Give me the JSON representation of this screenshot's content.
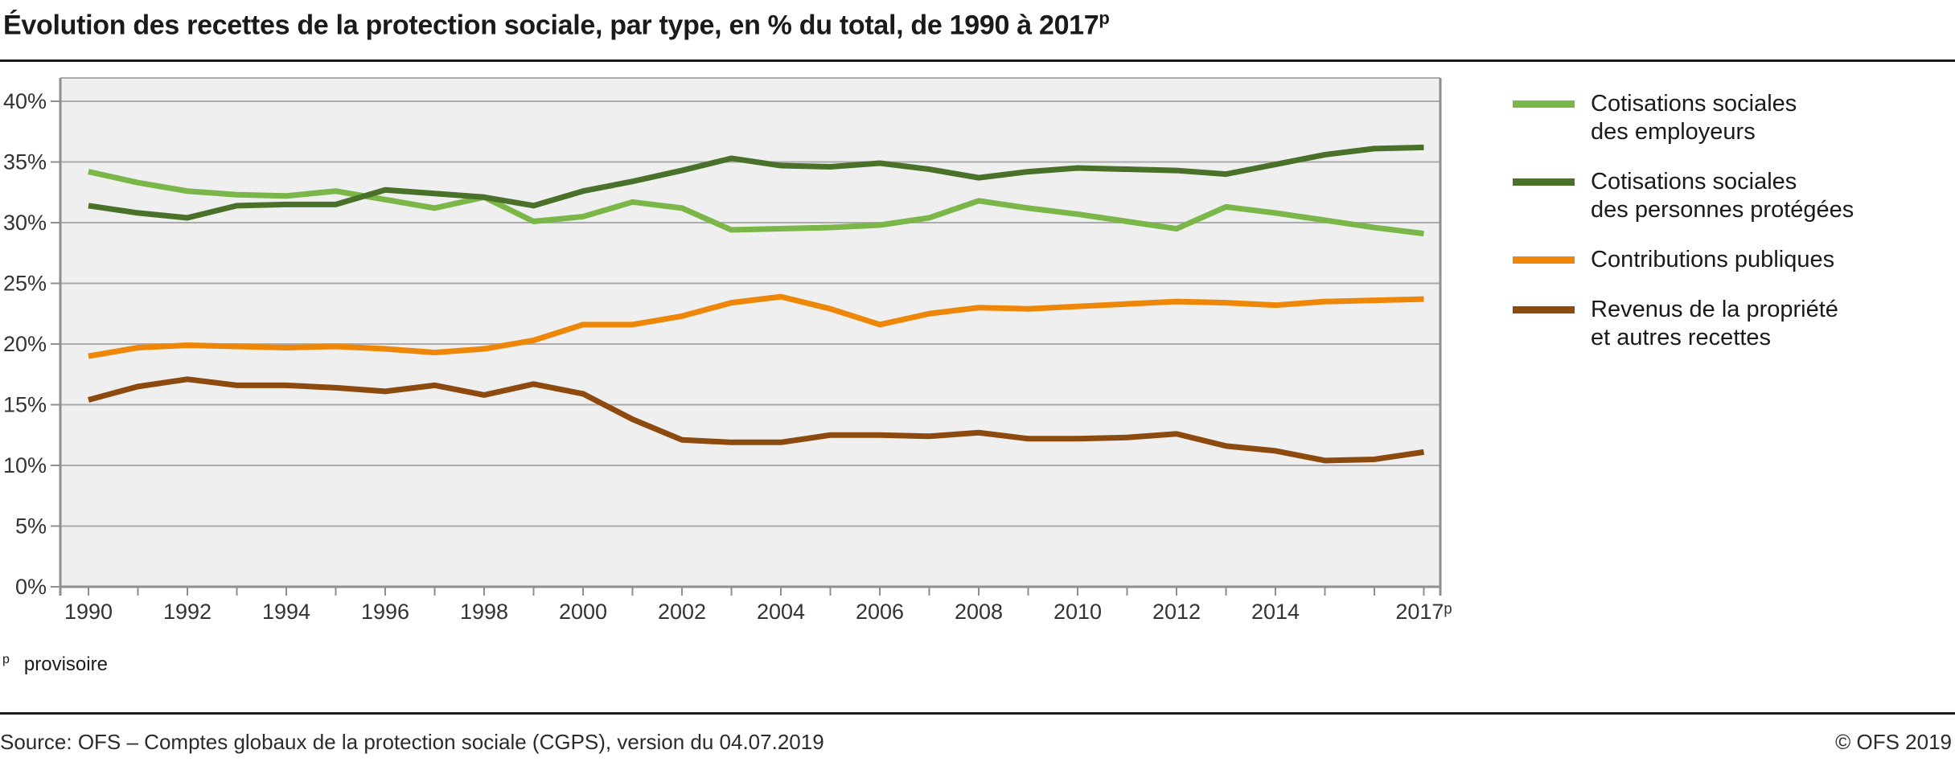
{
  "header": {
    "title": "Évolution des recettes de la protection sociale, par type, en % du total, de 1990 à 2017",
    "title_sup": "p"
  },
  "footnote": {
    "marker": "p",
    "text": "provisoire"
  },
  "footer": {
    "source": "Source: OFS – Comptes globaux de la protection sociale (CGPS), version du 04.07.2019",
    "copyright": "© OFS 2019"
  },
  "colors": {
    "plot_background": "#EFEFEF",
    "gridline": "#ABABAB",
    "axis": "#8F8F8F",
    "tick_label": "#333333",
    "rule": "#1A1A1A",
    "series_employeurs": "#7AB648",
    "series_personnes_protegees": "#4A7129",
    "series_contributions_publiques": "#EE8608",
    "series_revenus_propriete": "#8C4A0F"
  },
  "chart_data": {
    "type": "line",
    "title": "Évolution des recettes de la protection sociale, par type, en % du total, de 1990 à 2017p",
    "xlabel": "",
    "ylabel": "",
    "ylim": [
      0,
      40
    ],
    "grid": true,
    "legend_position": "right",
    "x": [
      1990,
      1991,
      1992,
      1993,
      1994,
      1995,
      1996,
      1997,
      1998,
      1999,
      2000,
      2001,
      2002,
      2003,
      2004,
      2005,
      2006,
      2007,
      2008,
      2009,
      2010,
      2011,
      2012,
      2013,
      2014,
      2015,
      2016,
      2017
    ],
    "x_axis": {
      "tick_label_years": [
        1990,
        1992,
        1994,
        1996,
        1998,
        2000,
        2002,
        2004,
        2006,
        2008,
        2010,
        2012,
        2014,
        2017
      ],
      "tick_labels": [
        "1990",
        "1992",
        "1994",
        "1996",
        "1998",
        "2000",
        "2002",
        "2004",
        "2006",
        "2008",
        "2010",
        "2012",
        "2014",
        "2017ᵖ"
      ]
    },
    "y_axis": {
      "min": 0,
      "max": 40,
      "step": 5,
      "tick_labels": [
        "0%",
        "5%",
        "10%",
        "15%",
        "20%",
        "25%",
        "30%",
        "35%",
        "40%"
      ]
    },
    "series": [
      {
        "key": "cotisations-employeurs",
        "name": "Cotisations sociales\ndes employeurs",
        "color": "#7AB648",
        "values": [
          34.2,
          33.3,
          32.6,
          32.3,
          32.2,
          32.6,
          31.9,
          31.2,
          32.1,
          30.1,
          30.5,
          31.7,
          31.2,
          29.4,
          29.5,
          29.6,
          29.8,
          30.4,
          31.8,
          31.2,
          30.7,
          30.1,
          29.5,
          31.3,
          30.8,
          30.2,
          29.6,
          29.1
        ]
      },
      {
        "key": "cotisations-personnes-protegees",
        "name": "Cotisations sociales\ndes personnes protégées",
        "color": "#4A7129",
        "values": [
          31.4,
          30.8,
          30.4,
          31.4,
          31.5,
          31.5,
          32.7,
          32.4,
          32.1,
          31.4,
          32.6,
          33.4,
          34.3,
          35.3,
          34.7,
          34.6,
          34.9,
          34.4,
          33.7,
          34.2,
          34.5,
          34.4,
          34.3,
          34.0,
          34.8,
          35.6,
          36.1,
          36.2
        ]
      },
      {
        "key": "contributions-publiques",
        "name": "Contributions publiques",
        "color": "#EE8608",
        "values": [
          19.0,
          19.7,
          19.9,
          19.8,
          19.7,
          19.8,
          19.6,
          19.3,
          19.6,
          20.3,
          21.6,
          21.6,
          22.3,
          23.4,
          23.9,
          22.9,
          21.6,
          22.5,
          23.0,
          22.9,
          23.1,
          23.3,
          23.5,
          23.4,
          23.2,
          23.5,
          23.6,
          23.7
        ]
      },
      {
        "key": "revenus-propriete",
        "name": "Revenus de la propriété\net autres recettes",
        "color": "#8C4A0F",
        "values": [
          15.4,
          16.5,
          17.1,
          16.6,
          16.6,
          16.4,
          16.1,
          16.6,
          15.8,
          16.7,
          15.9,
          13.8,
          12.1,
          11.9,
          11.9,
          12.5,
          12.5,
          12.4,
          12.7,
          12.2,
          12.2,
          12.3,
          12.6,
          11.6,
          11.2,
          10.4,
          10.5,
          11.1
        ]
      }
    ]
  }
}
